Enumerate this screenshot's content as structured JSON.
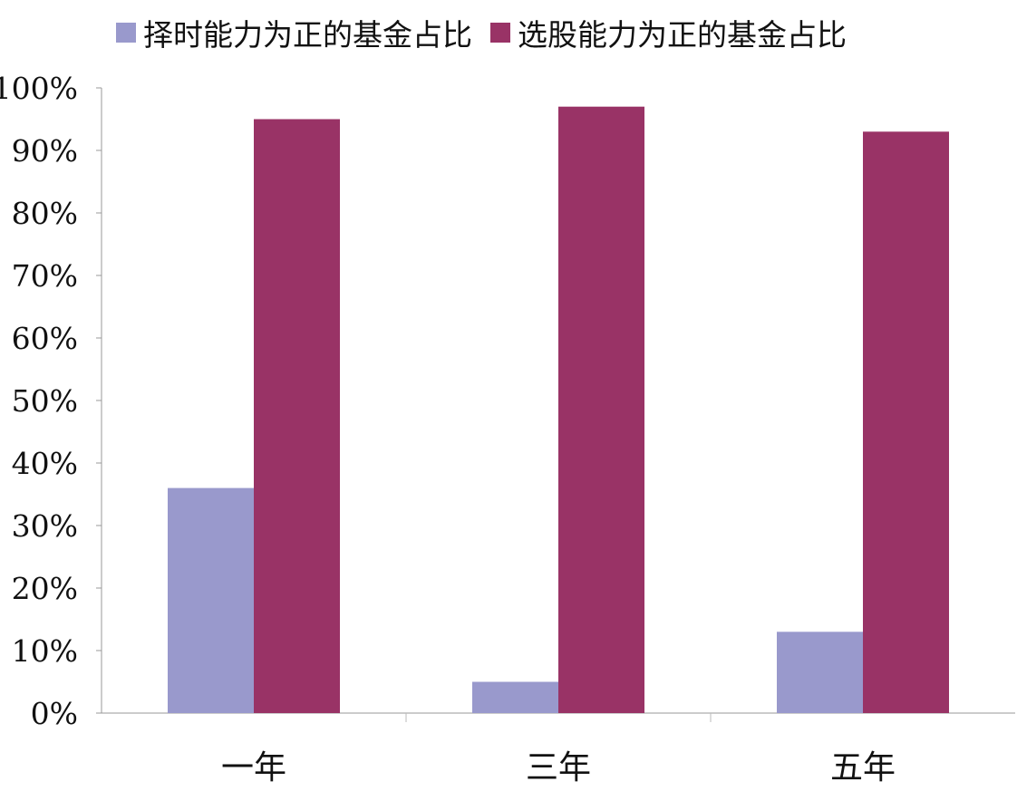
{
  "chart_data": {
    "type": "bar",
    "title": "",
    "xlabel": "",
    "ylabel": "",
    "categories": [
      "一年",
      "三年",
      "五年"
    ],
    "series": [
      {
        "name": "择时能力为正的基金占比",
        "color": "#9999cc",
        "values": [
          0.36,
          0.05,
          0.13
        ]
      },
      {
        "name": "选股能力为正的基金占比",
        "color": "#993366",
        "values": [
          0.95,
          0.97,
          0.93
        ]
      }
    ],
    "ylim": [
      0,
      1
    ],
    "yticks": [
      0,
      0.1,
      0.2,
      0.3,
      0.4,
      0.5,
      0.6,
      0.7,
      0.8,
      0.9,
      1.0
    ],
    "ytick_labels": [
      "0%",
      "10%",
      "20%",
      "30%",
      "40%",
      "50%",
      "60%",
      "70%",
      "80%",
      "90%",
      "100%"
    ],
    "legend_position": "top",
    "grid": false
  }
}
